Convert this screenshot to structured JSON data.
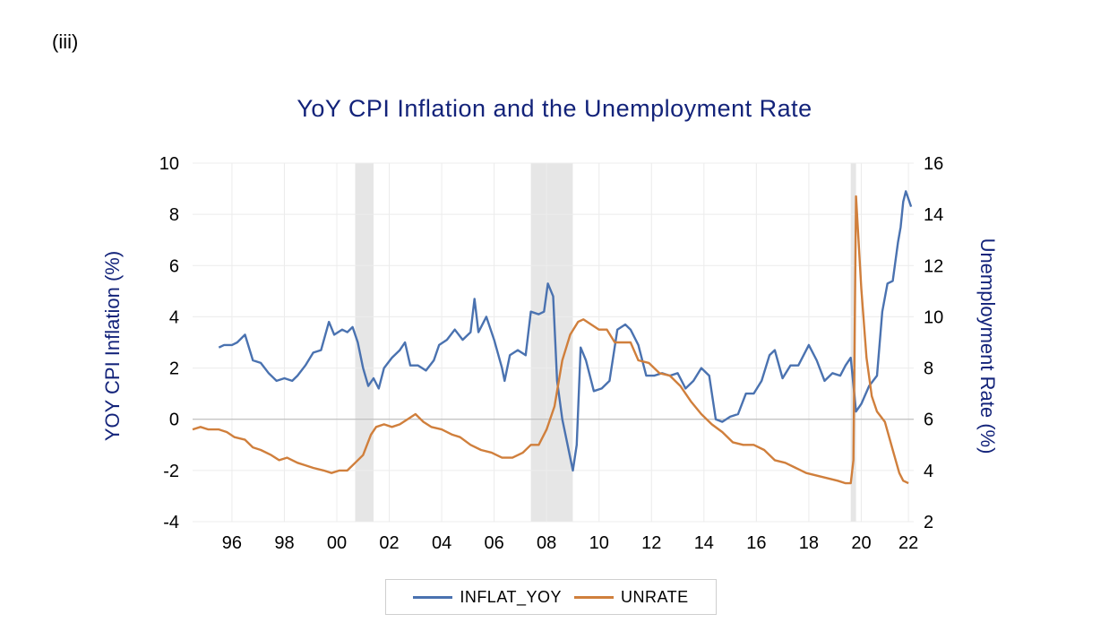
{
  "panel_label": "(iii)",
  "chart_data": {
    "type": "line",
    "title": "YoY CPI Inflation and the Unemployment Rate",
    "ylabel_left": "YOY CPI Inflation (%)",
    "ylabel_right": "Unemployment Rate (%)",
    "xlabel": "",
    "x_range": [
      1995.0,
      2022.5
    ],
    "ylim_left": [
      -4,
      10
    ],
    "ylim_right": [
      2,
      16
    ],
    "yticks_left": [
      "10",
      "8",
      "6",
      "4",
      "2",
      "0",
      "-2",
      "-4"
    ],
    "yticks_right": [
      "16",
      "14",
      "12",
      "10",
      "8",
      "6",
      "4",
      "2"
    ],
    "xticks": [
      {
        "label": "96",
        "x": 1996.5
      },
      {
        "label": "98",
        "x": 1998.5
      },
      {
        "label": "00",
        "x": 2000.5
      },
      {
        "label": "02",
        "x": 2002.5
      },
      {
        "label": "04",
        "x": 2004.5
      },
      {
        "label": "06",
        "x": 2006.5
      },
      {
        "label": "08",
        "x": 2008.5
      },
      {
        "label": "10",
        "x": 2010.5
      },
      {
        "label": "12",
        "x": 2012.5
      },
      {
        "label": "14",
        "x": 2014.5
      },
      {
        "label": "16",
        "x": 2016.5
      },
      {
        "label": "18",
        "x": 2018.5
      },
      {
        "label": "20",
        "x": 2020.5
      },
      {
        "label": "22",
        "x": 2022.3
      }
    ],
    "recessions": [
      [
        2001.2,
        2001.9
      ],
      [
        2007.9,
        2009.5
      ],
      [
        2020.1,
        2020.3
      ]
    ],
    "grid": true,
    "legend_position": "bottom",
    "series": [
      {
        "name": "INFLAT_YOY",
        "color": "#4a72b0",
        "axis": "left",
        "x": [
          1996.0,
          1996.2,
          1996.5,
          1996.7,
          1997.0,
          1997.3,
          1997.6,
          1997.9,
          1998.2,
          1998.5,
          1998.8,
          1999.0,
          1999.3,
          1999.6,
          1999.9,
          2000.2,
          2000.4,
          2000.7,
          2000.9,
          2001.1,
          2001.3,
          2001.5,
          2001.7,
          2001.9,
          2002.1,
          2002.3,
          2002.6,
          2002.9,
          2003.1,
          2003.3,
          2003.6,
          2003.9,
          2004.2,
          2004.4,
          2004.7,
          2005.0,
          2005.3,
          2005.6,
          2005.75,
          2005.9,
          2006.2,
          2006.5,
          2006.8,
          2006.9,
          2007.1,
          2007.4,
          2007.7,
          2007.9,
          2008.2,
          2008.4,
          2008.55,
          2008.75,
          2008.9,
          2009.1,
          2009.3,
          2009.5,
          2009.65,
          2009.8,
          2010.0,
          2010.3,
          2010.6,
          2010.9,
          2011.2,
          2011.5,
          2011.7,
          2012.0,
          2012.3,
          2012.6,
          2012.9,
          2013.2,
          2013.5,
          2013.8,
          2014.1,
          2014.4,
          2014.7,
          2014.95,
          2015.2,
          2015.5,
          2015.8,
          2016.1,
          2016.4,
          2016.7,
          2017.0,
          2017.2,
          2017.5,
          2017.8,
          2018.1,
          2018.5,
          2018.8,
          2019.1,
          2019.4,
          2019.7,
          2019.9,
          2020.1,
          2020.3,
          2020.5,
          2020.8,
          2021.1,
          2021.3,
          2021.5,
          2021.7,
          2021.9,
          2022.0,
          2022.1,
          2022.2,
          2022.4
        ],
        "values": [
          2.8,
          2.9,
          2.9,
          3.0,
          3.3,
          2.3,
          2.2,
          1.8,
          1.5,
          1.6,
          1.5,
          1.7,
          2.1,
          2.6,
          2.7,
          3.8,
          3.3,
          3.5,
          3.4,
          3.6,
          3.0,
          2.0,
          1.3,
          1.6,
          1.2,
          2.0,
          2.4,
          2.7,
          3.0,
          2.1,
          2.1,
          1.9,
          2.3,
          2.9,
          3.1,
          3.5,
          3.1,
          3.4,
          4.7,
          3.4,
          4.0,
          3.1,
          2.0,
          1.5,
          2.5,
          2.7,
          2.5,
          4.2,
          4.1,
          4.2,
          5.3,
          4.8,
          1.5,
          0.0,
          -1.0,
          -2.0,
          -1.0,
          2.8,
          2.3,
          1.1,
          1.2,
          1.5,
          3.5,
          3.7,
          3.5,
          2.9,
          1.7,
          1.7,
          1.8,
          1.7,
          1.8,
          1.2,
          1.5,
          2.0,
          1.7,
          0.0,
          -0.1,
          0.1,
          0.2,
          1.0,
          1.0,
          1.5,
          2.5,
          2.7,
          1.6,
          2.1,
          2.1,
          2.9,
          2.3,
          1.5,
          1.8,
          1.7,
          2.1,
          2.4,
          0.3,
          0.6,
          1.3,
          1.7,
          4.2,
          5.3,
          5.4,
          6.9,
          7.5,
          8.5,
          8.9,
          8.3
        ]
      },
      {
        "name": "UNRATE",
        "color": "#d07f3c",
        "axis": "right",
        "x": [
          1995.0,
          1995.3,
          1995.6,
          1996.0,
          1996.3,
          1996.6,
          1997.0,
          1997.3,
          1997.6,
          1998.0,
          1998.3,
          1998.6,
          1999.0,
          1999.3,
          1999.6,
          2000.0,
          2000.3,
          2000.6,
          2000.9,
          2001.2,
          2001.5,
          2001.8,
          2002.0,
          2002.3,
          2002.6,
          2002.9,
          2003.2,
          2003.5,
          2003.8,
          2004.1,
          2004.5,
          2004.9,
          2005.2,
          2005.6,
          2006.0,
          2006.4,
          2006.8,
          2007.2,
          2007.6,
          2007.9,
          2008.2,
          2008.5,
          2008.8,
          2009.1,
          2009.4,
          2009.7,
          2009.9,
          2010.2,
          2010.5,
          2010.8,
          2011.1,
          2011.4,
          2011.7,
          2012.0,
          2012.4,
          2012.8,
          2013.2,
          2013.6,
          2014.0,
          2014.4,
          2014.8,
          2015.2,
          2015.6,
          2016.0,
          2016.4,
          2016.8,
          2017.2,
          2017.6,
          2018.0,
          2018.4,
          2018.8,
          2019.2,
          2019.6,
          2019.9,
          2020.1,
          2020.2,
          2020.3,
          2020.5,
          2020.7,
          2020.9,
          2021.1,
          2021.4,
          2021.7,
          2021.95,
          2022.1,
          2022.3
        ],
        "values": [
          5.6,
          5.7,
          5.6,
          5.6,
          5.5,
          5.3,
          5.2,
          4.9,
          4.8,
          4.6,
          4.4,
          4.5,
          4.3,
          4.2,
          4.1,
          4.0,
          3.9,
          4.0,
          4.0,
          4.3,
          4.6,
          5.4,
          5.7,
          5.8,
          5.7,
          5.8,
          6.0,
          6.2,
          5.9,
          5.7,
          5.6,
          5.4,
          5.3,
          5.0,
          4.8,
          4.7,
          4.5,
          4.5,
          4.7,
          5.0,
          5.0,
          5.6,
          6.5,
          8.3,
          9.3,
          9.8,
          9.9,
          9.7,
          9.5,
          9.5,
          9.0,
          9.0,
          9.0,
          8.3,
          8.2,
          7.8,
          7.7,
          7.3,
          6.7,
          6.2,
          5.8,
          5.5,
          5.1,
          5.0,
          5.0,
          4.8,
          4.4,
          4.3,
          4.1,
          3.9,
          3.8,
          3.7,
          3.6,
          3.5,
          3.5,
          4.4,
          14.7,
          11.1,
          8.4,
          6.9,
          6.3,
          5.9,
          4.8,
          3.9,
          3.6,
          3.5
        ]
      }
    ]
  }
}
